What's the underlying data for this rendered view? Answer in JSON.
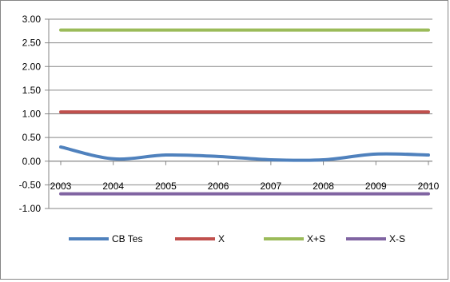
{
  "chart_data": {
    "type": "line",
    "title": "",
    "xlabel": "",
    "ylabel": "",
    "categories": [
      "2003",
      "2004",
      "2005",
      "2006",
      "2007",
      "2008",
      "2009",
      "2010"
    ],
    "ylim": [
      -1.0,
      3.0
    ],
    "ytick_step": 0.5,
    "grid": "horizontal",
    "legend_position": "bottom",
    "x_axis_crosses_at": 0,
    "series": [
      {
        "name": "CB Tes",
        "color": "#4F81BD",
        "smooth": true,
        "values": [
          0.3,
          0.05,
          0.13,
          0.1,
          0.03,
          0.03,
          0.15,
          0.13
        ]
      },
      {
        "name": "X",
        "color": "#C0504D",
        "values": [
          1.04,
          1.04,
          1.04,
          1.04,
          1.04,
          1.04,
          1.04,
          1.04
        ]
      },
      {
        "name": "X+S",
        "color": "#9BBB59",
        "values": [
          2.77,
          2.77,
          2.77,
          2.77,
          2.77,
          2.77,
          2.77,
          2.77
        ]
      },
      {
        "name": "X-S",
        "color": "#8064A2",
        "values": [
          -0.69,
          -0.69,
          -0.69,
          -0.69,
          -0.69,
          -0.69,
          -0.69,
          -0.69
        ]
      }
    ]
  }
}
